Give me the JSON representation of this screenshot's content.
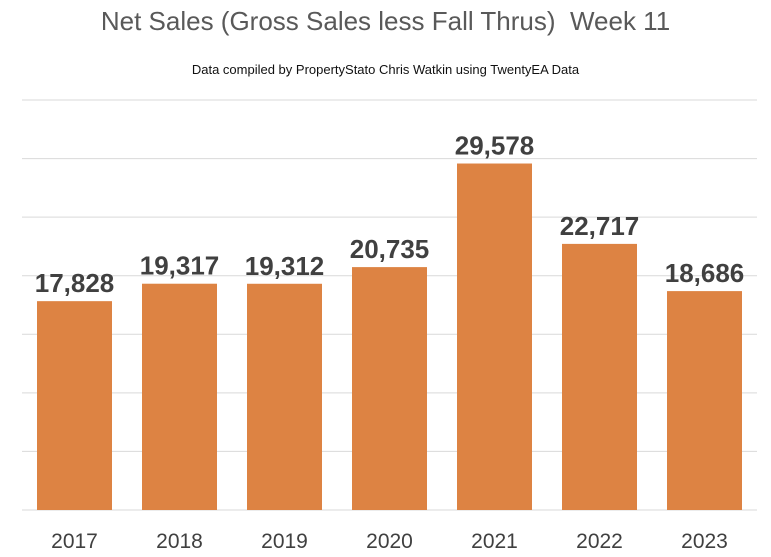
{
  "chart_data": {
    "type": "bar",
    "title": "Net Sales (Gross Sales less Fall Thrus)  Week 11",
    "subtitle": "Data compiled by PropertyStato Chris Watkin using TwentyEA Data",
    "categories": [
      "2017",
      "2018",
      "2019",
      "2020",
      "2021",
      "2022",
      "2023"
    ],
    "values": [
      17828,
      19317,
      19312,
      20735,
      29578,
      22717,
      18686
    ],
    "value_labels": [
      "17,828",
      "19,317",
      "19,312",
      "20,735",
      "29,578",
      "22,717",
      "18,686"
    ],
    "xlabel": "",
    "ylabel": "",
    "ylim": [
      0,
      35000
    ],
    "grid": true,
    "legend": "none",
    "colors": {
      "bar": "#dd8343",
      "gridline": "#d9d9d9",
      "label": "#404040",
      "title": "#595959"
    }
  }
}
